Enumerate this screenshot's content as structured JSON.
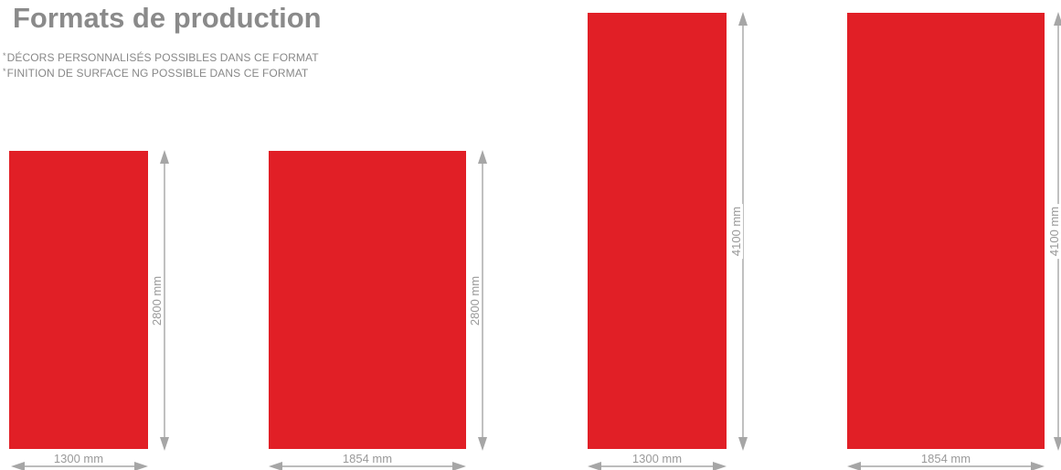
{
  "title": "Formats de production",
  "notes": [
    {
      "marker": "*",
      "text": "DÉCORS PERSONNALISÉS POSSIBLES DANS CE FORMAT"
    },
    {
      "marker": "*",
      "text": "FINITION DE SURFACE NG POSSIBLE DANS CE FORMAT"
    }
  ],
  "panel_color": "#e11f26",
  "dimension_color": "#9a9a9a",
  "panels": [
    {
      "width_label": "1300 mm",
      "height_label": "2800 mm"
    },
    {
      "width_label": "1854 mm",
      "height_label": "2800 mm"
    },
    {
      "width_label": "1300 mm",
      "height_label": "4100 mm"
    },
    {
      "width_label": "1854 mm",
      "height_label": "4100 mm"
    }
  ]
}
